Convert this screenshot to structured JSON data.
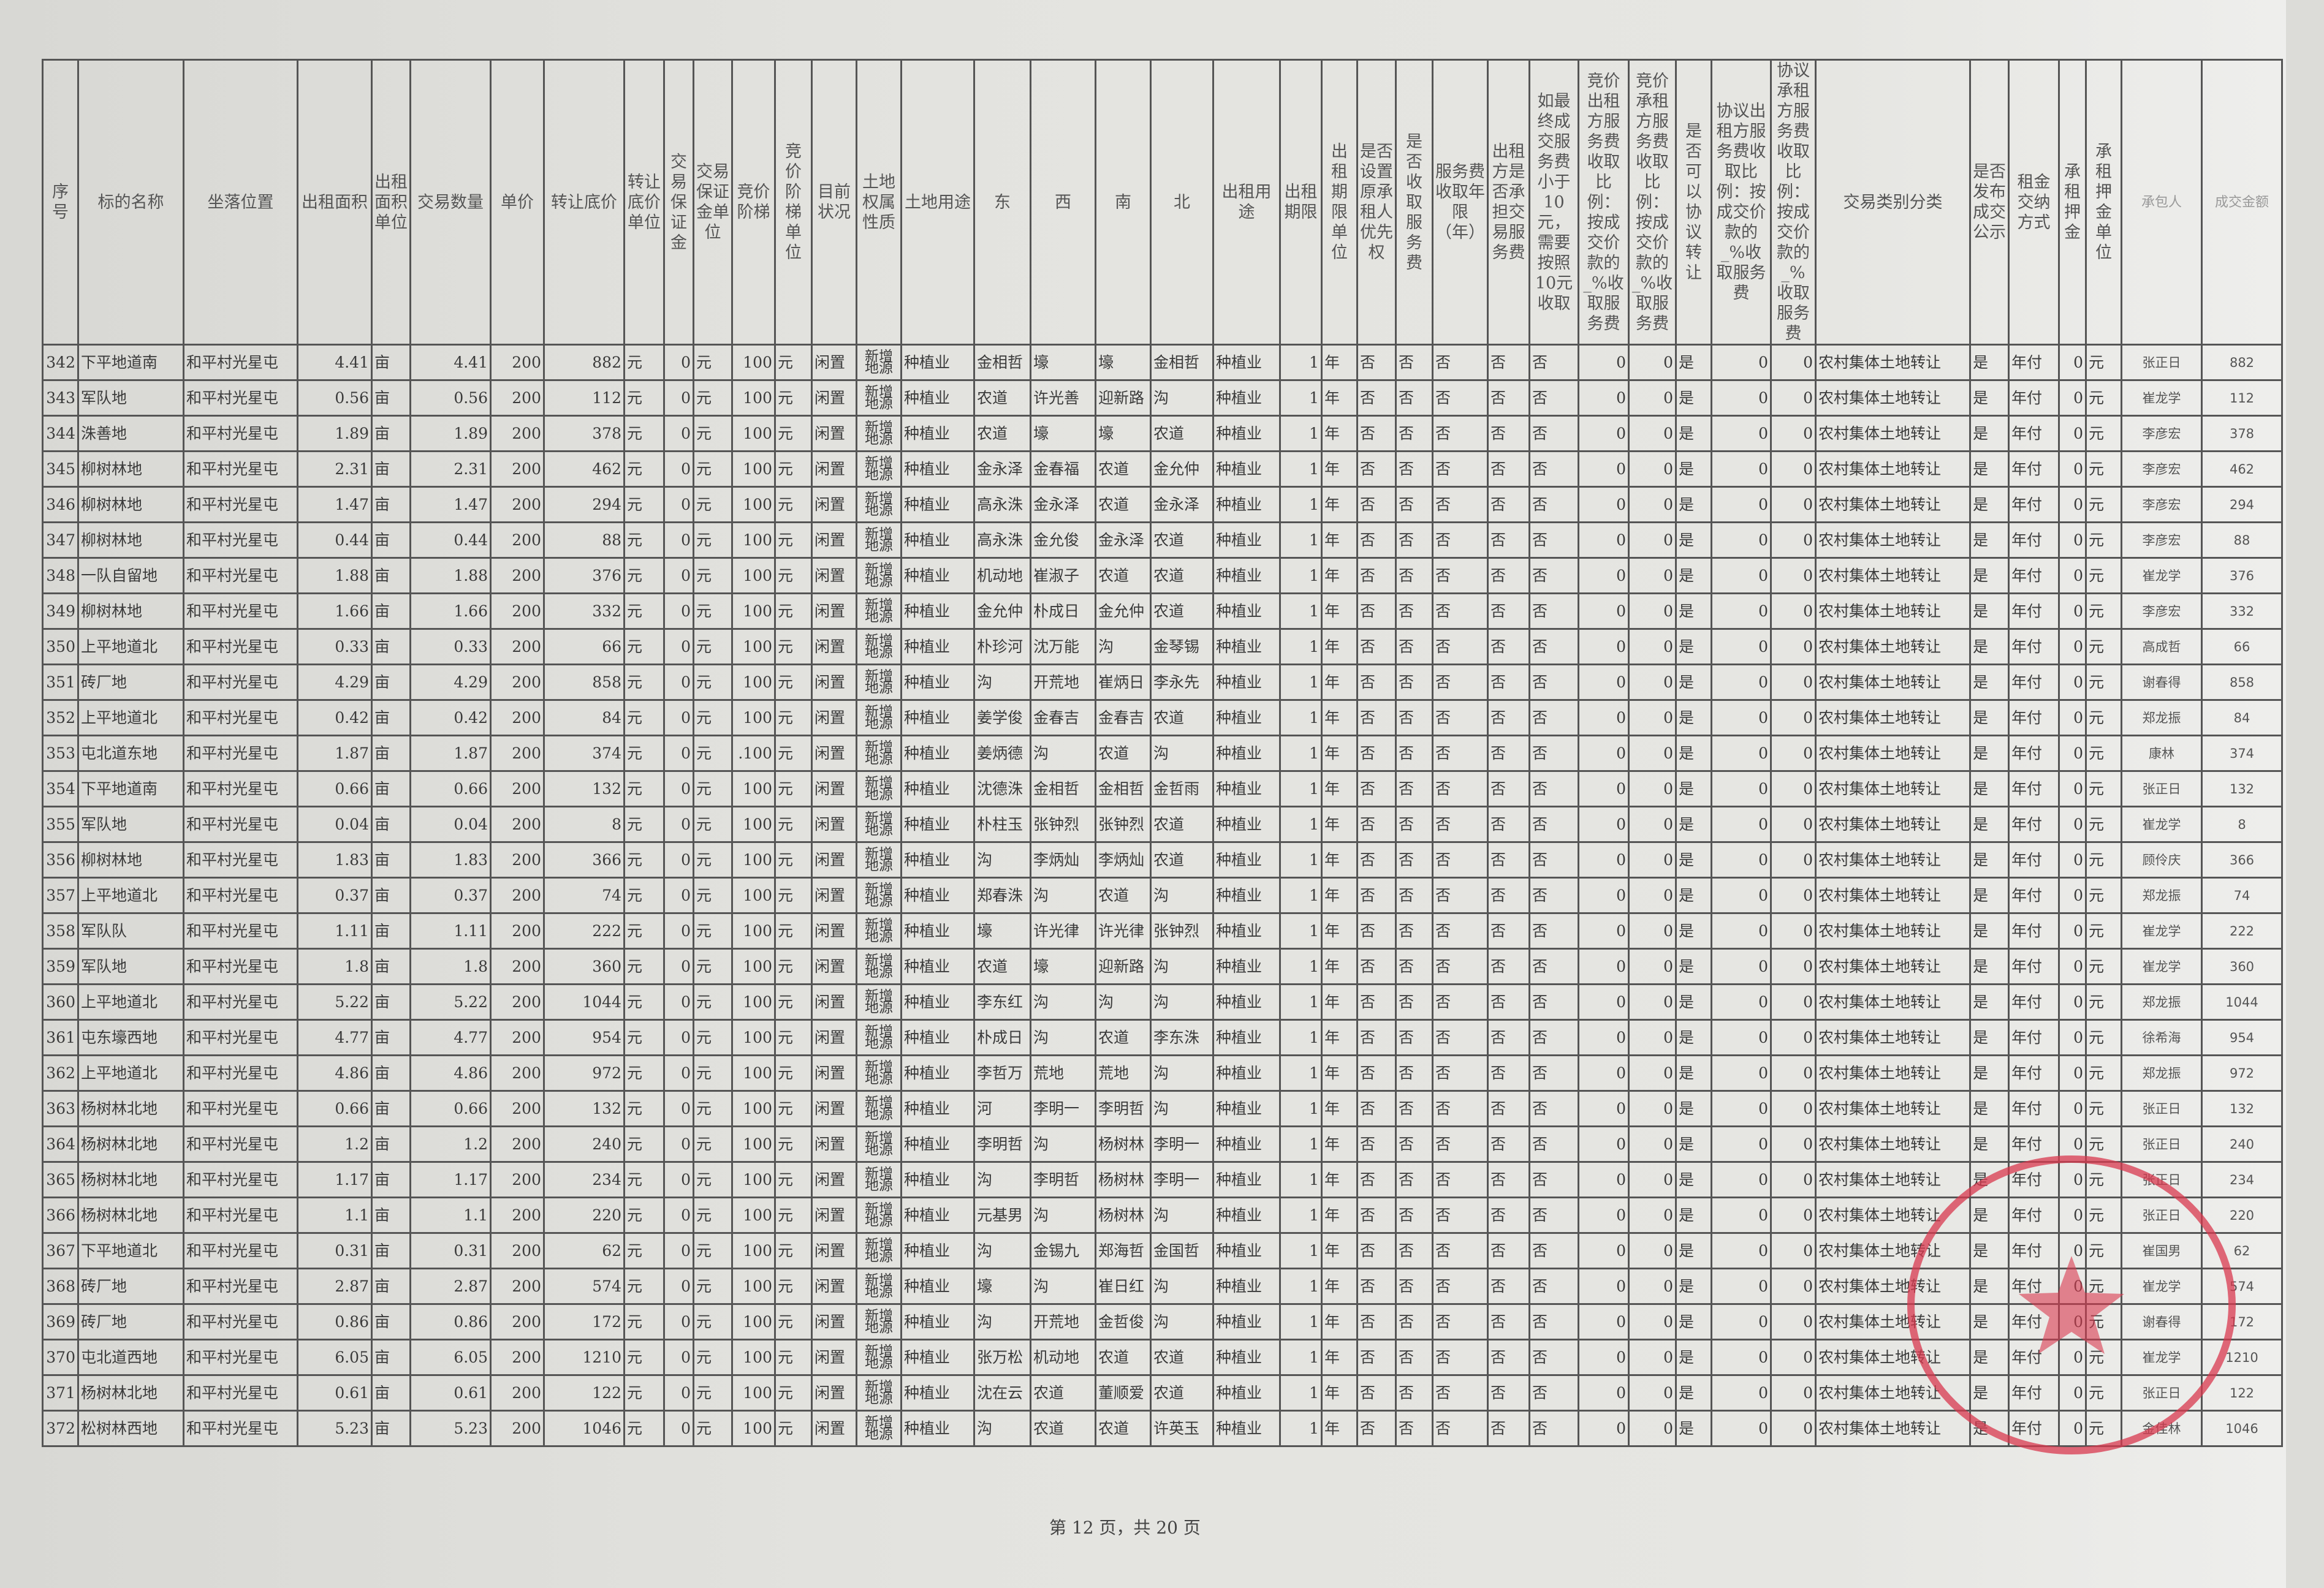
{
  "table": {
    "headers": [
      "序号",
      "标的名称",
      "坐落位置",
      "出租面积",
      "出租面积单位",
      "交易数量",
      "单价",
      "转让底价",
      "转让底价单位",
      "交易保证金",
      "交易保证金单位",
      "竞价阶梯",
      "竞价阶梯单位",
      "目前状况",
      "土地权属性质",
      "土地用途",
      "东",
      "西",
      "南",
      "北",
      "出租用途",
      "出租期限",
      "出租期限单位",
      "是否设置原承租人优先权",
      "是否收取服务费",
      "服务费收取年限（年）",
      "出租方是否承担交易服务费",
      "如最终成交服务费小于10元，需要按照10元收取",
      "竞价出租方服务费收取比例：按成交价款的_%收取服务费",
      "竞价承租方服务费收取比例：按成交价款的_%收取服务费",
      "是否可以协议转让",
      "协议出租方服务费收取比例：按成交价款的_%收取服务费",
      "协议承租方服务费收取比例：按成交价款的_%收取服务费",
      "交易类别分类",
      "是否发布成交公示",
      "租金交纳方式",
      "承租押金",
      "承租押金单位",
      "承包人",
      "成交金额"
    ],
    "rows": [
      [
        "342",
        "下平地道南",
        "和平村光星屯",
        "4.41",
        "亩",
        "4.41",
        "200",
        "882",
        "元",
        "0",
        "元",
        "100",
        "元",
        "闲置",
        "新增地源",
        "种植业",
        "金相哲",
        "壕",
        "壕",
        "金相哲",
        "种植业",
        "1",
        "年",
        "否",
        "否",
        "否",
        "否",
        "否",
        "0",
        "0",
        "是",
        "0",
        "0",
        "农村集体土地转让",
        "是",
        "年付",
        "0",
        "元",
        "张正日",
        "882"
      ],
      [
        "343",
        "军队地",
        "和平村光星屯",
        "0.56",
        "亩",
        "0.56",
        "200",
        "112",
        "元",
        "0",
        "元",
        "100",
        "元",
        "闲置",
        "新增地源",
        "种植业",
        "农道",
        "许光善",
        "迎新路",
        "沟",
        "种植业",
        "1",
        "年",
        "否",
        "否",
        "否",
        "否",
        "否",
        "0",
        "0",
        "是",
        "0",
        "0",
        "农村集体土地转让",
        "是",
        "年付",
        "0",
        "元",
        "崔龙学",
        "112"
      ],
      [
        "344",
        "洙善地",
        "和平村光星屯",
        "1.89",
        "亩",
        "1.89",
        "200",
        "378",
        "元",
        "0",
        "元",
        "100",
        "元",
        "闲置",
        "新增地源",
        "种植业",
        "农道",
        "壕",
        "壕",
        "农道",
        "种植业",
        "1",
        "年",
        "否",
        "否",
        "否",
        "否",
        "否",
        "0",
        "0",
        "是",
        "0",
        "0",
        "农村集体土地转让",
        "是",
        "年付",
        "0",
        "元",
        "李彦宏",
        "378"
      ],
      [
        "345",
        "柳树林地",
        "和平村光星屯",
        "2.31",
        "亩",
        "2.31",
        "200",
        "462",
        "元",
        "0",
        "元",
        "100",
        "元",
        "闲置",
        "新增地源",
        "种植业",
        "金永泽",
        "金春福",
        "农道",
        "金允仲",
        "种植业",
        "1",
        "年",
        "否",
        "否",
        "否",
        "否",
        "否",
        "0",
        "0",
        "是",
        "0",
        "0",
        "农村集体土地转让",
        "是",
        "年付",
        "0",
        "元",
        "李彦宏",
        "462"
      ],
      [
        "346",
        "柳树林地",
        "和平村光星屯",
        "1.47",
        "亩",
        "1.47",
        "200",
        "294",
        "元",
        "0",
        "元",
        "100",
        "元",
        "闲置",
        "新增地源",
        "种植业",
        "高永洙",
        "金永泽",
        "农道",
        "金永泽",
        "种植业",
        "1",
        "年",
        "否",
        "否",
        "否",
        "否",
        "否",
        "0",
        "0",
        "是",
        "0",
        "0",
        "农村集体土地转让",
        "是",
        "年付",
        "0",
        "元",
        "李彦宏",
        "294"
      ],
      [
        "347",
        "柳树林地",
        "和平村光星屯",
        "0.44",
        "亩",
        "0.44",
        "200",
        "88",
        "元",
        "0",
        "元",
        "100",
        "元",
        "闲置",
        "新增地源",
        "种植业",
        "高永洙",
        "金允俊",
        "金永泽",
        "农道",
        "种植业",
        "1",
        "年",
        "否",
        "否",
        "否",
        "否",
        "否",
        "0",
        "0",
        "是",
        "0",
        "0",
        "农村集体土地转让",
        "是",
        "年付",
        "0",
        "元",
        "李彦宏",
        "88"
      ],
      [
        "348",
        "一队自留地",
        "和平村光星屯",
        "1.88",
        "亩",
        "1.88",
        "200",
        "376",
        "元",
        "0",
        "元",
        "100",
        "元",
        "闲置",
        "新增地源",
        "种植业",
        "机动地",
        "崔淑子",
        "农道",
        "农道",
        "种植业",
        "1",
        "年",
        "否",
        "否",
        "否",
        "否",
        "否",
        "0",
        "0",
        "是",
        "0",
        "0",
        "农村集体土地转让",
        "是",
        "年付",
        "0",
        "元",
        "崔龙学",
        "376"
      ],
      [
        "349",
        "柳树林地",
        "和平村光星屯",
        "1.66",
        "亩",
        "1.66",
        "200",
        "332",
        "元",
        "0",
        "元",
        "100",
        "元",
        "闲置",
        "新增地源",
        "种植业",
        "金允仲",
        "朴成日",
        "金允仲",
        "农道",
        "种植业",
        "1",
        "年",
        "否",
        "否",
        "否",
        "否",
        "否",
        "0",
        "0",
        "是",
        "0",
        "0",
        "农村集体土地转让",
        "是",
        "年付",
        "0",
        "元",
        "李彦宏",
        "332"
      ],
      [
        "350",
        "上平地道北",
        "和平村光星屯",
        "0.33",
        "亩",
        "0.33",
        "200",
        "66",
        "元",
        "0",
        "元",
        "100",
        "元",
        "闲置",
        "新增地源",
        "种植业",
        "朴珍河",
        "沈万能",
        "沟",
        "金琴锡",
        "种植业",
        "1",
        "年",
        "否",
        "否",
        "否",
        "否",
        "否",
        "0",
        "0",
        "是",
        "0",
        "0",
        "农村集体土地转让",
        "是",
        "年付",
        "0",
        "元",
        "高成哲",
        "66"
      ],
      [
        "351",
        "砖厂地",
        "和平村光星屯",
        "4.29",
        "亩",
        "4.29",
        "200",
        "858",
        "元",
        "0",
        "元",
        "100",
        "元",
        "闲置",
        "新增地源",
        "种植业",
        "沟",
        "开荒地",
        "崔炳日",
        "李永先",
        "种植业",
        "1",
        "年",
        "否",
        "否",
        "否",
        "否",
        "否",
        "0",
        "0",
        "是",
        "0",
        "0",
        "农村集体土地转让",
        "是",
        "年付",
        "0",
        "元",
        "谢春得",
        "858"
      ],
      [
        "352",
        "上平地道北",
        "和平村光星屯",
        "0.42",
        "亩",
        "0.42",
        "200",
        "84",
        "元",
        "0",
        "元",
        "100",
        "元",
        "闲置",
        "新增地源",
        "种植业",
        "姜学俊",
        "金春吉",
        "金春吉",
        "农道",
        "种植业",
        "1",
        "年",
        "否",
        "否",
        "否",
        "否",
        "否",
        "0",
        "0",
        "是",
        "0",
        "0",
        "农村集体土地转让",
        "是",
        "年付",
        "0",
        "元",
        "郑龙振",
        "84"
      ],
      [
        "353",
        "屯北道东地",
        "和平村光星屯",
        "1.87",
        "亩",
        "1.87",
        "200",
        "374",
        "元",
        "0",
        "元",
        ".100",
        "元",
        "闲置",
        "新增地源",
        "种植业",
        "姜炳德",
        "沟",
        "农道",
        "沟",
        "种植业",
        "1",
        "年",
        "否",
        "否",
        "否",
        "否",
        "否",
        "0",
        "0",
        "是",
        "0",
        "0",
        "农村集体土地转让",
        "是",
        "年付",
        "0",
        "元",
        "康林",
        "374"
      ],
      [
        "354",
        "下平地道南",
        "和平村光星屯",
        "0.66",
        "亩",
        "0.66",
        "200",
        "132",
        "元",
        "0",
        "元",
        "100",
        "元",
        "闲置",
        "新增地源",
        "种植业",
        "沈德洙",
        "金相哲",
        "金相哲",
        "金哲雨",
        "种植业",
        "1",
        "年",
        "否",
        "否",
        "否",
        "否",
        "否",
        "0",
        "0",
        "是",
        "0",
        "0",
        "农村集体土地转让",
        "是",
        "年付",
        "0",
        "元",
        "张正日",
        "132"
      ],
      [
        "355",
        "军队地",
        "和平村光星屯",
        "0.04",
        "亩",
        "0.04",
        "200",
        "8",
        "元",
        "0",
        "元",
        "100",
        "元",
        "闲置",
        "新增地源",
        "种植业",
        "朴柱玉",
        "张钟烈",
        "张钟烈",
        "农道",
        "种植业",
        "1",
        "年",
        "否",
        "否",
        "否",
        "否",
        "否",
        "0",
        "0",
        "是",
        "0",
        "0",
        "农村集体土地转让",
        "是",
        "年付",
        "0",
        "元",
        "崔龙学",
        "8"
      ],
      [
        "356",
        "柳树林地",
        "和平村光星屯",
        "1.83",
        "亩",
        "1.83",
        "200",
        "366",
        "元",
        "0",
        "元",
        "100",
        "元",
        "闲置",
        "新增地源",
        "种植业",
        "沟",
        "李炳灿",
        "李炳灿",
        "农道",
        "种植业",
        "1",
        "年",
        "否",
        "否",
        "否",
        "否",
        "否",
        "0",
        "0",
        "是",
        "0",
        "0",
        "农村集体土地转让",
        "是",
        "年付",
        "0",
        "元",
        "顾伶庆",
        "366"
      ],
      [
        "357",
        "上平地道北",
        "和平村光星屯",
        "0.37",
        "亩",
        "0.37",
        "200",
        "74",
        "元",
        "0",
        "元",
        "100",
        "元",
        "闲置",
        "新增地源",
        "种植业",
        "郑春洙",
        "沟",
        "农道",
        "沟",
        "种植业",
        "1",
        "年",
        "否",
        "否",
        "否",
        "否",
        "否",
        "0",
        "0",
        "是",
        "0",
        "0",
        "农村集体土地转让",
        "是",
        "年付",
        "0",
        "元",
        "郑龙振",
        "74"
      ],
      [
        "358",
        "军队队",
        "和平村光星屯",
        "1.11",
        "亩",
        "1.11",
        "200",
        "222",
        "元",
        "0",
        "元",
        "100",
        "元",
        "闲置",
        "新增地源",
        "种植业",
        "壕",
        "许光律",
        "许光律",
        "张钟烈",
        "种植业",
        "1",
        "年",
        "否",
        "否",
        "否",
        "否",
        "否",
        "0",
        "0",
        "是",
        "0",
        "0",
        "农村集体土地转让",
        "是",
        "年付",
        "0",
        "元",
        "崔龙学",
        "222"
      ],
      [
        "359",
        "军队地",
        "和平村光星屯",
        "1.8",
        "亩",
        "1.8",
        "200",
        "360",
        "元",
        "0",
        "元",
        "100",
        "元",
        "闲置",
        "新增地源",
        "种植业",
        "农道",
        "壕",
        "迎新路",
        "沟",
        "种植业",
        "1",
        "年",
        "否",
        "否",
        "否",
        "否",
        "否",
        "0",
        "0",
        "是",
        "0",
        "0",
        "农村集体土地转让",
        "是",
        "年付",
        "0",
        "元",
        "崔龙学",
        "360"
      ],
      [
        "360",
        "上平地道北",
        "和平村光星屯",
        "5.22",
        "亩",
        "5.22",
        "200",
        "1044",
        "元",
        "0",
        "元",
        "100",
        "元",
        "闲置",
        "新增地源",
        "种植业",
        "李东红",
        "沟",
        "沟",
        "沟",
        "种植业",
        "1",
        "年",
        "否",
        "否",
        "否",
        "否",
        "否",
        "0",
        "0",
        "是",
        "0",
        "0",
        "农村集体土地转让",
        "是",
        "年付",
        "0",
        "元",
        "郑龙振",
        "1044"
      ],
      [
        "361",
        "屯东壕西地",
        "和平村光星屯",
        "4.77",
        "亩",
        "4.77",
        "200",
        "954",
        "元",
        "0",
        "元",
        "100",
        "元",
        "闲置",
        "新增地源",
        "种植业",
        "朴成日",
        "沟",
        "农道",
        "李东洙",
        "种植业",
        "1",
        "年",
        "否",
        "否",
        "否",
        "否",
        "否",
        "0",
        "0",
        "是",
        "0",
        "0",
        "农村集体土地转让",
        "是",
        "年付",
        "0",
        "元",
        "徐希海",
        "954"
      ],
      [
        "362",
        "上平地道北",
        "和平村光星屯",
        "4.86",
        "亩",
        "4.86",
        "200",
        "972",
        "元",
        "0",
        "元",
        "100",
        "元",
        "闲置",
        "新增地源",
        "种植业",
        "李哲万",
        "荒地",
        "荒地",
        "沟",
        "种植业",
        "1",
        "年",
        "否",
        "否",
        "否",
        "否",
        "否",
        "0",
        "0",
        "是",
        "0",
        "0",
        "农村集体土地转让",
        "是",
        "年付",
        "0",
        "元",
        "郑龙振",
        "972"
      ],
      [
        "363",
        "杨树林北地",
        "和平村光星屯",
        "0.66",
        "亩",
        "0.66",
        "200",
        "132",
        "元",
        "0",
        "元",
        "100",
        "元",
        "闲置",
        "新增地源",
        "种植业",
        "河",
        "李明一",
        "李明哲",
        "沟",
        "种植业",
        "1",
        "年",
        "否",
        "否",
        "否",
        "否",
        "否",
        "0",
        "0",
        "是",
        "0",
        "0",
        "农村集体土地转让",
        "是",
        "年付",
        "0",
        "元",
        "张正日",
        "132"
      ],
      [
        "364",
        "杨树林北地",
        "和平村光星屯",
        "1.2",
        "亩",
        "1.2",
        "200",
        "240",
        "元",
        "0",
        "元",
        "100",
        "元",
        "闲置",
        "新增地源",
        "种植业",
        "李明哲",
        "沟",
        "杨树林",
        "李明一",
        "种植业",
        "1",
        "年",
        "否",
        "否",
        "否",
        "否",
        "否",
        "0",
        "0",
        "是",
        "0",
        "0",
        "农村集体土地转让",
        "是",
        "年付",
        "0",
        "元",
        "张正日",
        "240"
      ],
      [
        "365",
        "杨树林北地",
        "和平村光星屯",
        "1.17",
        "亩",
        "1.17",
        "200",
        "234",
        "元",
        "0",
        "元",
        "100",
        "元",
        "闲置",
        "新增地源",
        "种植业",
        "沟",
        "李明哲",
        "杨树林",
        "李明一",
        "种植业",
        "1",
        "年",
        "否",
        "否",
        "否",
        "否",
        "否",
        "0",
        "0",
        "是",
        "0",
        "0",
        "农村集体土地转让",
        "是",
        "年付",
        "0",
        "元",
        "张正日",
        "234"
      ],
      [
        "366",
        "杨树林北地",
        "和平村光星屯",
        "1.1",
        "亩",
        "1.1",
        "200",
        "220",
        "元",
        "0",
        "元",
        "100",
        "元",
        "闲置",
        "新增地源",
        "种植业",
        "元基男",
        "沟",
        "杨树林",
        "沟",
        "种植业",
        "1",
        "年",
        "否",
        "否",
        "否",
        "否",
        "否",
        "0",
        "0",
        "是",
        "0",
        "0",
        "农村集体土地转让",
        "是",
        "年付",
        "0",
        "元",
        "张正日",
        "220"
      ],
      [
        "367",
        "下平地道北",
        "和平村光星屯",
        "0.31",
        "亩",
        "0.31",
        "200",
        "62",
        "元",
        "0",
        "元",
        "100",
        "元",
        "闲置",
        "新增地源",
        "种植业",
        "沟",
        "金锡九",
        "郑海哲",
        "金国哲",
        "种植业",
        "1",
        "年",
        "否",
        "否",
        "否",
        "否",
        "否",
        "0",
        "0",
        "是",
        "0",
        "0",
        "农村集体土地转让",
        "是",
        "年付",
        "0",
        "元",
        "崔国男",
        "62"
      ],
      [
        "368",
        "砖厂地",
        "和平村光星屯",
        "2.87",
        "亩",
        "2.87",
        "200",
        "574",
        "元",
        "0",
        "元",
        "100",
        "元",
        "闲置",
        "新增地源",
        "种植业",
        "壕",
        "沟",
        "崔日红",
        "沟",
        "种植业",
        "1",
        "年",
        "否",
        "否",
        "否",
        "否",
        "否",
        "0",
        "0",
        "是",
        "0",
        "0",
        "农村集体土地转让",
        "是",
        "年付",
        "0",
        "元",
        "崔龙学",
        "574"
      ],
      [
        "369",
        "砖厂地",
        "和平村光星屯",
        "0.86",
        "亩",
        "0.86",
        "200",
        "172",
        "元",
        "0",
        "元",
        "100",
        "元",
        "闲置",
        "新增地源",
        "种植业",
        "沟",
        "开荒地",
        "金哲俊",
        "沟",
        "种植业",
        "1",
        "年",
        "否",
        "否",
        "否",
        "否",
        "否",
        "0",
        "0",
        "是",
        "0",
        "0",
        "农村集体土地转让",
        "是",
        "年付",
        "0",
        "元",
        "谢春得",
        "172"
      ],
      [
        "370",
        "屯北道西地",
        "和平村光星屯",
        "6.05",
        "亩",
        "6.05",
        "200",
        "1210",
        "元",
        "0",
        "元",
        "100",
        "元",
        "闲置",
        "新增地源",
        "种植业",
        "张万松",
        "机动地",
        "农道",
        "农道",
        "种植业",
        "1",
        "年",
        "否",
        "否",
        "否",
        "否",
        "否",
        "0",
        "0",
        "是",
        "0",
        "0",
        "农村集体土地转让",
        "是",
        "年付",
        "0",
        "元",
        "崔龙学",
        "1210"
      ],
      [
        "371",
        "杨树林北地",
        "和平村光星屯",
        "0.61",
        "亩",
        "0.61",
        "200",
        "122",
        "元",
        "0",
        "元",
        "100",
        "元",
        "闲置",
        "新增地源",
        "种植业",
        "沈在云",
        "农道",
        "董顺爱",
        "农道",
        "种植业",
        "1",
        "年",
        "否",
        "否",
        "否",
        "否",
        "否",
        "0",
        "0",
        "是",
        "0",
        "0",
        "农村集体土地转让",
        "是",
        "年付",
        "0",
        "元",
        "张正日",
        "122"
      ],
      [
        "372",
        "松树林西地",
        "和平村光星屯",
        "5.23",
        "亩",
        "5.23",
        "200",
        "1046",
        "元",
        "0",
        "元",
        "100",
        "元",
        "闲置",
        "新增地源",
        "种植业",
        "沟",
        "农道",
        "农道",
        "许英玉",
        "种植业",
        "1",
        "年",
        "否",
        "否",
        "否",
        "否",
        "否",
        "0",
        "0",
        "是",
        "0",
        "0",
        "农村集体土地转让",
        "是",
        "年付",
        "0",
        "元",
        "金佳林",
        "1046"
      ]
    ]
  },
  "footer": {
    "page_indicator": "第 12 页，共 20 页"
  },
  "stamp": {
    "color": "#d9394f",
    "shape": "round-seal-with-star"
  }
}
